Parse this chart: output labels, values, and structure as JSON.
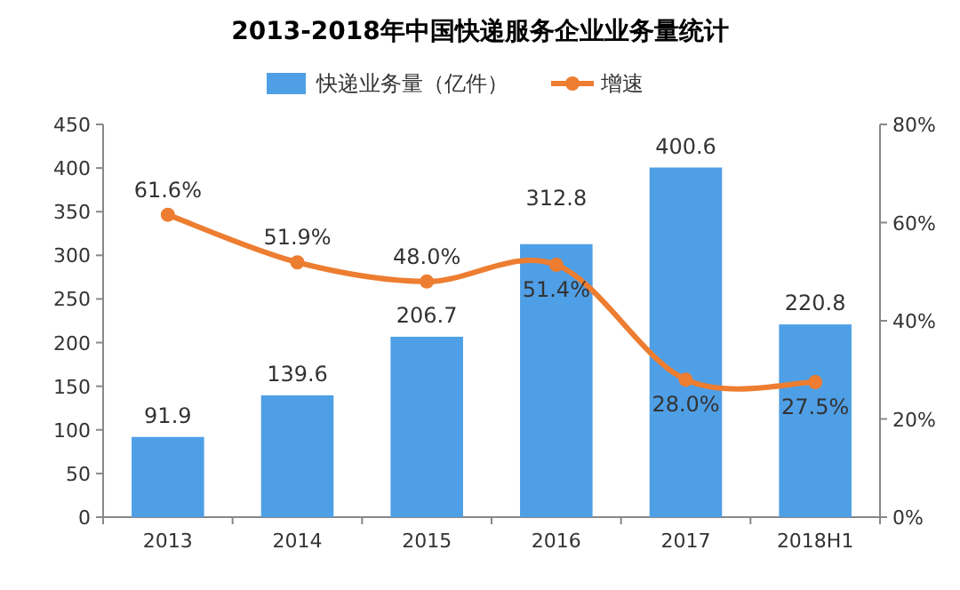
{
  "chart_data": {
    "type": "bar",
    "title": "2013-2018年中国快递服务企业业务量统计",
    "categories": [
      "2013",
      "2014",
      "2015",
      "2016",
      "2017",
      "2018H1"
    ],
    "series": [
      {
        "name": "快递业务量（亿件）",
        "color": "#4f9fe6",
        "values": [
          91.9,
          139.6,
          206.7,
          312.8,
          400.6,
          220.8
        ],
        "value_labels": [
          "91.9",
          "139.6",
          "206.7",
          "312.8",
          "400.6",
          "220.8"
        ]
      },
      {
        "name": "增速",
        "type": "line",
        "axis": "y2",
        "color": "#ed7d31",
        "values": [
          61.6,
          51.9,
          48.0,
          51.4,
          28.0,
          27.5
        ],
        "value_labels": [
          "61.6%",
          "51.9%",
          "48.0%",
          "51.4%",
          "28.0%",
          "27.5%"
        ]
      }
    ],
    "ylim": [
      0,
      450
    ],
    "yticks": [
      0,
      50,
      100,
      150,
      200,
      250,
      300,
      350,
      400,
      450
    ],
    "y2lim": [
      0,
      80
    ],
    "y2ticks": [
      {
        "value": 0,
        "label": "0%"
      },
      {
        "value": 20,
        "label": "20%"
      },
      {
        "value": 40,
        "label": "40%"
      },
      {
        "value": 60,
        "label": "60%"
      },
      {
        "value": 80,
        "label": "80%"
      }
    ],
    "legend": "top",
    "marker": "circle",
    "grid": false
  }
}
